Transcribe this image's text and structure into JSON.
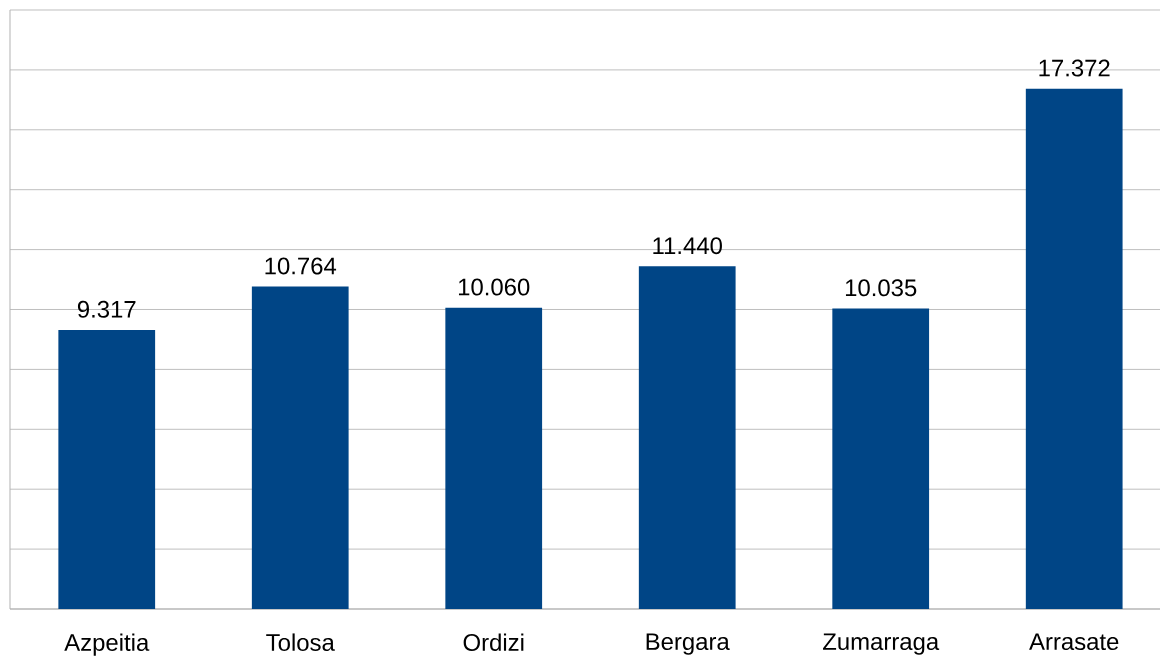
{
  "chart_data": {
    "type": "bar",
    "categories": [
      "Azpeitia",
      "Tolosa",
      "Ordizi",
      "Bergara",
      "Zumarraga",
      "Arrasate"
    ],
    "values": [
      9317,
      10764,
      10060,
      11440,
      10035,
      17372
    ],
    "value_labels": [
      "9.317",
      "10.764",
      "10.060",
      "11.440",
      "10.035",
      "17.372"
    ],
    "color": "#004586",
    "ylim": [
      0,
      20000
    ],
    "yticks": [
      {
        "value": 0,
        "label": null
      },
      {
        "value": 2000,
        "label": null
      },
      {
        "value": 4000,
        "label": null
      },
      {
        "value": 6000,
        "label": null
      },
      {
        "value": 8000,
        "label": null
      },
      {
        "value": 10000,
        "label": null
      },
      {
        "value": 12000,
        "label": null
      },
      {
        "value": 14000,
        "label": null
      },
      {
        "value": 16000,
        "label": null
      },
      {
        "value": 18000,
        "label": null
      },
      {
        "value": 20000,
        "label": null
      }
    ],
    "tick_labels": "x",
    "grid": "y"
  }
}
